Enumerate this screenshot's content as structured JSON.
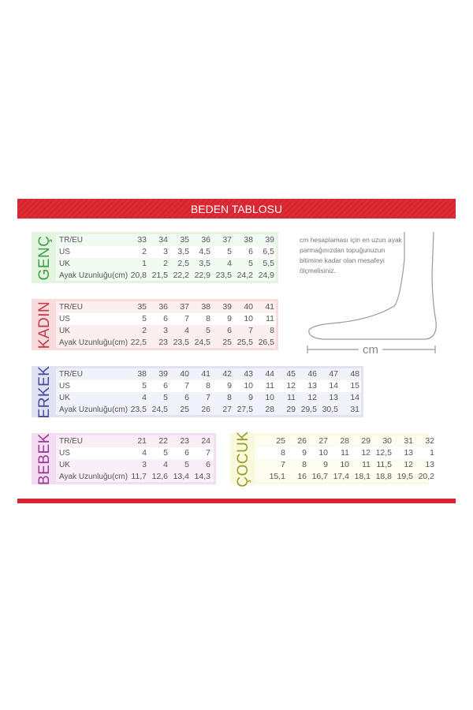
{
  "title": "BEDEN TABLOSU",
  "row_labels": [
    "TR/EU",
    "US",
    "UK",
    "Ayak Uzunluğu(cm)"
  ],
  "note": "cm hesaplaması için en uzun ayak parmağınızdan topuğunuzun bitimine kadar olan mesafeyi ölçmelisiniz.",
  "cm_label": "cm",
  "colors": {
    "banner": "#d9232e"
  },
  "tables": [
    {
      "id": "genc",
      "label": "GENÇ",
      "bg": "#e3f5df",
      "fg": "#3f9e4a",
      "show_row_labels": true,
      "rows": [
        [
          "33",
          "34",
          "35",
          "36",
          "37",
          "38",
          "39"
        ],
        [
          "2",
          "3",
          "3,5",
          "4,5",
          "5",
          "6",
          "6,5"
        ],
        [
          "1",
          "2",
          "2,5",
          "3,5",
          "4",
          "5",
          "5,5"
        ],
        [
          "20,8",
          "21,5",
          "22,2",
          "22,9",
          "23,5",
          "24,2",
          "24,9"
        ]
      ]
    },
    {
      "id": "kadin",
      "label": "KADIN",
      "bg": "#f8dcdc",
      "fg": "#c0394a",
      "show_row_labels": true,
      "rows": [
        [
          "35",
          "36",
          "37",
          "38",
          "39",
          "40",
          "41"
        ],
        [
          "5",
          "6",
          "7",
          "8",
          "9",
          "10",
          "11"
        ],
        [
          "2",
          "3",
          "4",
          "5",
          "6",
          "7",
          "8"
        ],
        [
          "22,5",
          "23",
          "23,5",
          "24,5",
          "25",
          "25,5",
          "26,5"
        ]
      ]
    },
    {
      "id": "erkek",
      "label": "ERKEK",
      "bg": "#e2e2f5",
      "fg": "#4a4a9c",
      "show_row_labels": true,
      "rows": [
        [
          "38",
          "39",
          "40",
          "41",
          "42",
          "43",
          "44",
          "45",
          "46",
          "47",
          "48"
        ],
        [
          "5",
          "6",
          "7",
          "8",
          "9",
          "10",
          "11",
          "12",
          "13",
          "14",
          "15"
        ],
        [
          "4",
          "5",
          "6",
          "7",
          "8",
          "9",
          "10",
          "11",
          "12",
          "13",
          "14"
        ],
        [
          "23,5",
          "24,5",
          "25",
          "26",
          "27",
          "27,5",
          "28",
          "29",
          "29,5",
          "30,5",
          "31"
        ]
      ]
    },
    {
      "id": "bebek",
      "label": "BEBEK",
      "bg": "#f4dcf2",
      "fg": "#9c3a96",
      "show_row_labels": true,
      "rows": [
        [
          "21",
          "22",
          "23",
          "24"
        ],
        [
          "4",
          "5",
          "6",
          "7"
        ],
        [
          "3",
          "4",
          "5",
          "6"
        ],
        [
          "11,7",
          "12,6",
          "13,4",
          "14,3"
        ]
      ]
    },
    {
      "id": "cocuk",
      "label": "ÇOCUK",
      "bg": "#f9f9dc",
      "fg": "#9a9a2e",
      "show_row_labels": false,
      "rows": [
        [
          "25",
          "26",
          "27",
          "28",
          "29",
          "30",
          "31",
          "32"
        ],
        [
          "8",
          "9",
          "10",
          "11",
          "12",
          "12,5",
          "13",
          "1"
        ],
        [
          "7",
          "8",
          "9",
          "10",
          "11",
          "11,5",
          "12",
          "13"
        ],
        [
          "15,1",
          "16",
          "16,7",
          "17,4",
          "18,1",
          "18,8",
          "19,5",
          "20,2"
        ]
      ]
    }
  ]
}
